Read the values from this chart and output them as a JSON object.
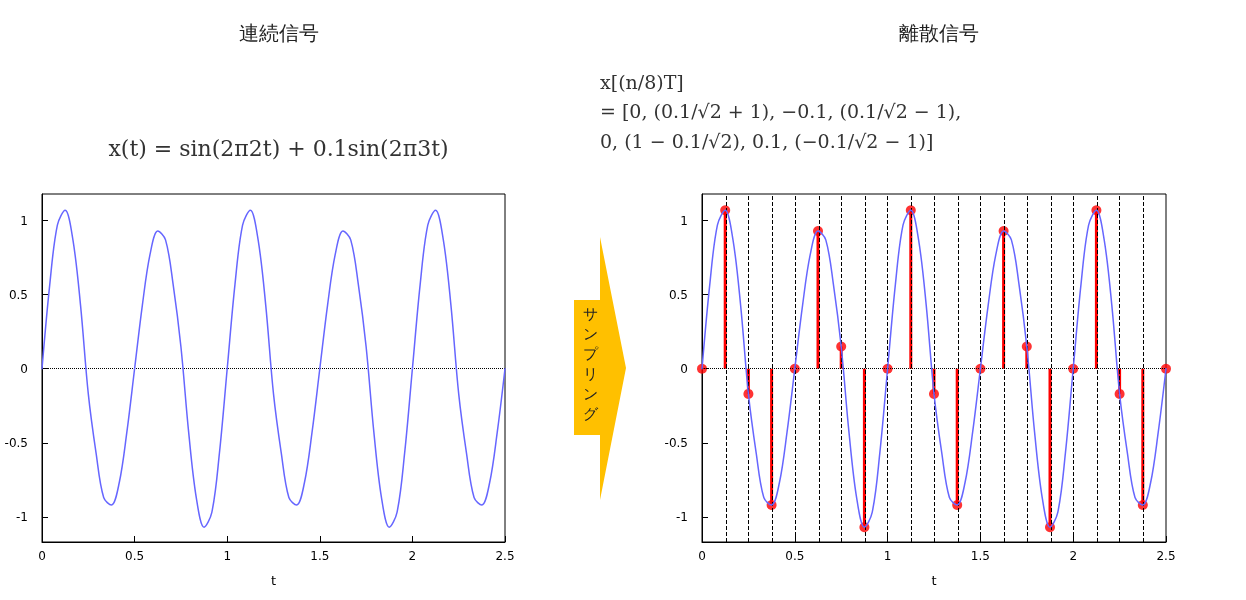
{
  "chart_data": [
    {
      "type": "line",
      "title": "連続信号",
      "subtitle": "x(t) = sin(2π2t) + 0.1sin(2π3t)",
      "xlabel": "t",
      "x": [
        0,
        0.042,
        0.083,
        0.125,
        0.167,
        0.208,
        0.25,
        0.292,
        0.333,
        0.375,
        0.417,
        0.458,
        0.5,
        0.542,
        0.583,
        0.625,
        0.667,
        0.708,
        0.75,
        0.792,
        0.833,
        0.875,
        0.917,
        0.958,
        1,
        1.042,
        1.083,
        1.125,
        1.167,
        1.208,
        1.25,
        1.292,
        1.333,
        1.375,
        1.417,
        1.458,
        1.5,
        1.542,
        1.583,
        1.625,
        1.667,
        1.708,
        1.75,
        1.792,
        1.833,
        1.875,
        1.917,
        1.958,
        2,
        2.042,
        2.083,
        2.125,
        2.167,
        2.208,
        2.25,
        2.292,
        2.333,
        2.375,
        2.417,
        2.458,
        2.5
      ],
      "values": [
        0,
        0.57,
        0.97,
        1.07,
        0.87,
        0.43,
        -0.17,
        -0.57,
        -0.87,
        -0.92,
        -0.77,
        -0.43,
        0,
        0.43,
        0.77,
        0.93,
        0.87,
        0.57,
        0.15,
        -0.43,
        -0.87,
        -1.07,
        -0.97,
        -0.57,
        0,
        0.57,
        0.97,
        1.07,
        0.87,
        0.43,
        -0.17,
        -0.57,
        -0.87,
        -0.92,
        -0.77,
        -0.43,
        0,
        0.43,
        0.77,
        0.93,
        0.87,
        0.57,
        0.15,
        -0.43,
        -0.87,
        -1.07,
        -0.97,
        -0.57,
        0,
        0.57,
        0.97,
        1.07,
        0.87,
        0.43,
        -0.17,
        -0.57,
        -0.87,
        -0.92,
        -0.77,
        -0.43,
        0
      ],
      "color": "#6666ff",
      "xlim": [
        0,
        2.5
      ],
      "xticks": [
        0,
        0.5,
        1,
        1.5,
        2,
        2.5
      ],
      "ylim": [
        -1.17,
        1.18
      ],
      "yticks": [
        -1,
        -0.5,
        0,
        0.5,
        1
      ],
      "ref_lines": [
        {
          "axis": "y",
          "value": 0,
          "color": "#000000",
          "line_style": "dotted"
        }
      ]
    },
    {
      "type": "other",
      "annotations": [
        "サンプリング"
      ]
    },
    {
      "type": "line",
      "title": "離散信号",
      "subtitle": "x[(n/8)T]\n= [0, (0.1/√2 + 1), −0.1, (0.1/√2 − 1),\n0, (1 − 0.1/√2), 0.1, (−0.1/√2 − 1)]",
      "xlabel": "t",
      "series": [
        {
          "type": "line",
          "color": "#6666ff",
          "x": [
            0,
            0.042,
            0.083,
            0.125,
            0.167,
            0.208,
            0.25,
            0.292,
            0.333,
            0.375,
            0.417,
            0.458,
            0.5,
            0.542,
            0.583,
            0.625,
            0.667,
            0.708,
            0.75,
            0.792,
            0.833,
            0.875,
            0.917,
            0.958,
            1,
            1.042,
            1.083,
            1.125,
            1.167,
            1.208,
            1.25,
            1.292,
            1.333,
            1.375,
            1.417,
            1.458,
            1.5,
            1.542,
            1.583,
            1.625,
            1.667,
            1.708,
            1.75,
            1.792,
            1.833,
            1.875,
            1.917,
            1.958,
            2,
            2.042,
            2.083,
            2.125,
            2.167,
            2.208,
            2.25,
            2.292,
            2.333,
            2.375,
            2.417,
            2.458,
            2.5
          ],
          "values": [
            0,
            0.57,
            0.97,
            1.07,
            0.87,
            0.43,
            -0.17,
            -0.57,
            -0.87,
            -0.92,
            -0.77,
            -0.43,
            0,
            0.43,
            0.77,
            0.93,
            0.87,
            0.57,
            0.15,
            -0.43,
            -0.87,
            -1.07,
            -0.97,
            -0.57,
            0,
            0.57,
            0.97,
            1.07,
            0.87,
            0.43,
            -0.17,
            -0.57,
            -0.87,
            -0.92,
            -0.77,
            -0.43,
            0,
            0.43,
            0.77,
            0.93,
            0.87,
            0.57,
            0.15,
            -0.43,
            -0.87,
            -1.07,
            -0.97,
            -0.57,
            0,
            0.57,
            0.97,
            1.07,
            0.87,
            0.43,
            -0.17,
            -0.57,
            -0.87,
            -0.92,
            -0.77,
            -0.43,
            0
          ]
        },
        {
          "type": "lollipop",
          "color": "#ff0000",
          "marker": "circle",
          "x": [
            0,
            0.125,
            0.25,
            0.375,
            0.5,
            0.625,
            0.75,
            0.875,
            1,
            1.125,
            1.25,
            1.375,
            1.5,
            1.625,
            1.75,
            1.875,
            2,
            2.125,
            2.25,
            2.375,
            2.5
          ],
          "values": [
            0,
            1.07,
            -0.17,
            -0.92,
            0,
            0.93,
            0.15,
            -1.07,
            0,
            1.07,
            -0.17,
            -0.92,
            0,
            0.93,
            0.15,
            -1.07,
            0,
            1.07,
            -0.17,
            -0.92,
            0
          ]
        }
      ],
      "xlim": [
        0,
        2.5
      ],
      "xticks": [
        0,
        0.5,
        1,
        1.5,
        2,
        2.5
      ],
      "ylim": [
        -1.17,
        1.18
      ],
      "yticks": [
        -1,
        -0.5,
        0,
        0.5,
        1
      ],
      "ref_lines": [
        {
          "axis": "y",
          "value": 0,
          "color": "#000000",
          "line_style": "dotted"
        },
        {
          "axis": "x",
          "value": 0.125,
          "color": "#000000",
          "line_style": "dashed"
        },
        {
          "axis": "x",
          "value": 0.25,
          "color": "#000000",
          "line_style": "dashed"
        },
        {
          "axis": "x",
          "value": 0.375,
          "color": "#000000",
          "line_style": "dashed"
        },
        {
          "axis": "x",
          "value": 0.5,
          "color": "#000000",
          "line_style": "dashed"
        },
        {
          "axis": "x",
          "value": 0.625,
          "color": "#000000",
          "line_style": "dashed"
        },
        {
          "axis": "x",
          "value": 0.75,
          "color": "#000000",
          "line_style": "dashed"
        },
        {
          "axis": "x",
          "value": 0.875,
          "color": "#000000",
          "line_style": "dashed"
        },
        {
          "axis": "x",
          "value": 1,
          "color": "#000000",
          "line_style": "dashed"
        },
        {
          "axis": "x",
          "value": 1.125,
          "color": "#000000",
          "line_style": "dashed"
        },
        {
          "axis": "x",
          "value": 1.25,
          "color": "#000000",
          "line_style": "dashed"
        },
        {
          "axis": "x",
          "value": 1.375,
          "color": "#000000",
          "line_style": "dashed"
        },
        {
          "axis": "x",
          "value": 1.5,
          "color": "#000000",
          "line_style": "dashed"
        },
        {
          "axis": "x",
          "value": 1.625,
          "color": "#000000",
          "line_style": "dashed"
        },
        {
          "axis": "x",
          "value": 1.75,
          "color": "#000000",
          "line_style": "dashed"
        },
        {
          "axis": "x",
          "value": 1.875,
          "color": "#000000",
          "line_style": "dashed"
        },
        {
          "axis": "x",
          "value": 2,
          "color": "#000000",
          "line_style": "dashed"
        },
        {
          "axis": "x",
          "value": 2.125,
          "color": "#000000",
          "line_style": "dashed"
        },
        {
          "axis": "x",
          "value": 2.25,
          "color": "#000000",
          "line_style": "dashed"
        },
        {
          "axis": "x",
          "value": 2.375,
          "color": "#000000",
          "line_style": "dashed"
        }
      ]
    }
  ]
}
